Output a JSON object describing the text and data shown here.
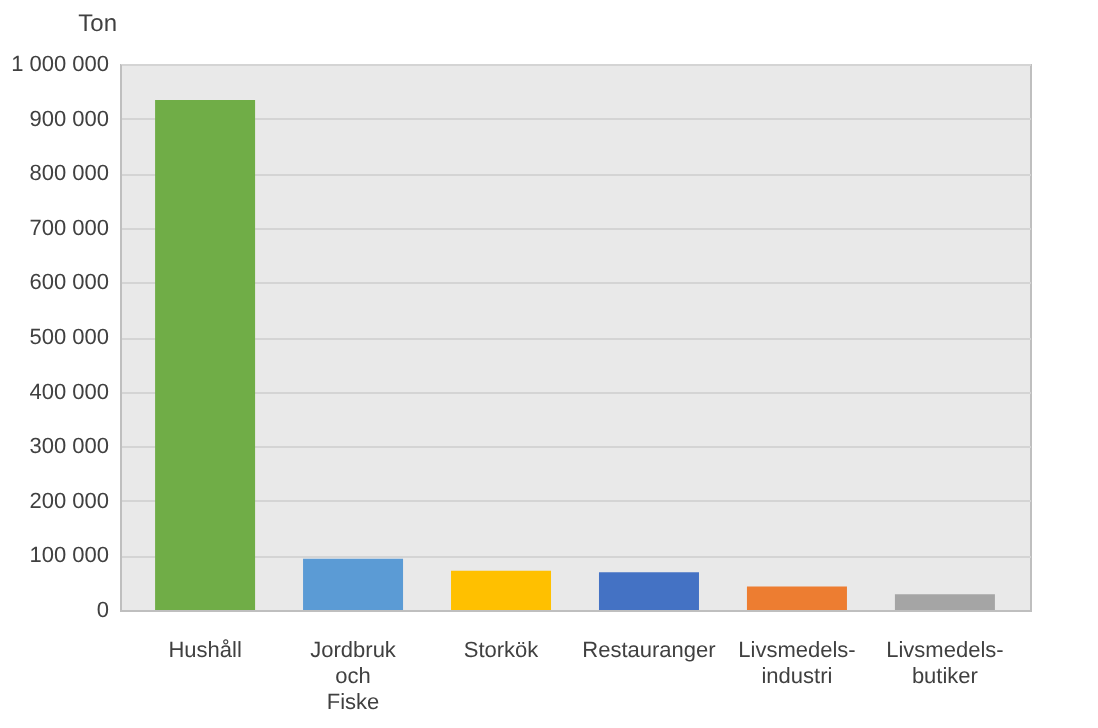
{
  "chart_data": {
    "type": "bar",
    "ylabel": "Ton",
    "categories": [
      "Hushåll",
      "Jordbruk\noch\nFiske",
      "Storkök",
      "Restauranger",
      "Livsmedels-\nindustri",
      "Livsmedels-\nbutiker"
    ],
    "values": [
      934000,
      94000,
      72000,
      69000,
      43000,
      29000
    ],
    "colors": [
      "#70ad47",
      "#5b9bd5",
      "#ffc000",
      "#4472c4",
      "#ed7d31",
      "#a5a5a5"
    ],
    "ylim": [
      0,
      1000000
    ],
    "yticks": [
      {
        "value": 0,
        "label": "0"
      },
      {
        "value": 100000,
        "label": "100 000"
      },
      {
        "value": 200000,
        "label": "200 000"
      },
      {
        "value": 300000,
        "label": "300 000"
      },
      {
        "value": 400000,
        "label": "400 000"
      },
      {
        "value": 500000,
        "label": "500 000"
      },
      {
        "value": 600000,
        "label": "600 000"
      },
      {
        "value": 700000,
        "label": "700 000"
      },
      {
        "value": 800000,
        "label": "800 000"
      },
      {
        "value": 900000,
        "label": "900 000"
      },
      {
        "value": 1000000,
        "label": "1 000 000"
      }
    ],
    "grid": "y"
  }
}
